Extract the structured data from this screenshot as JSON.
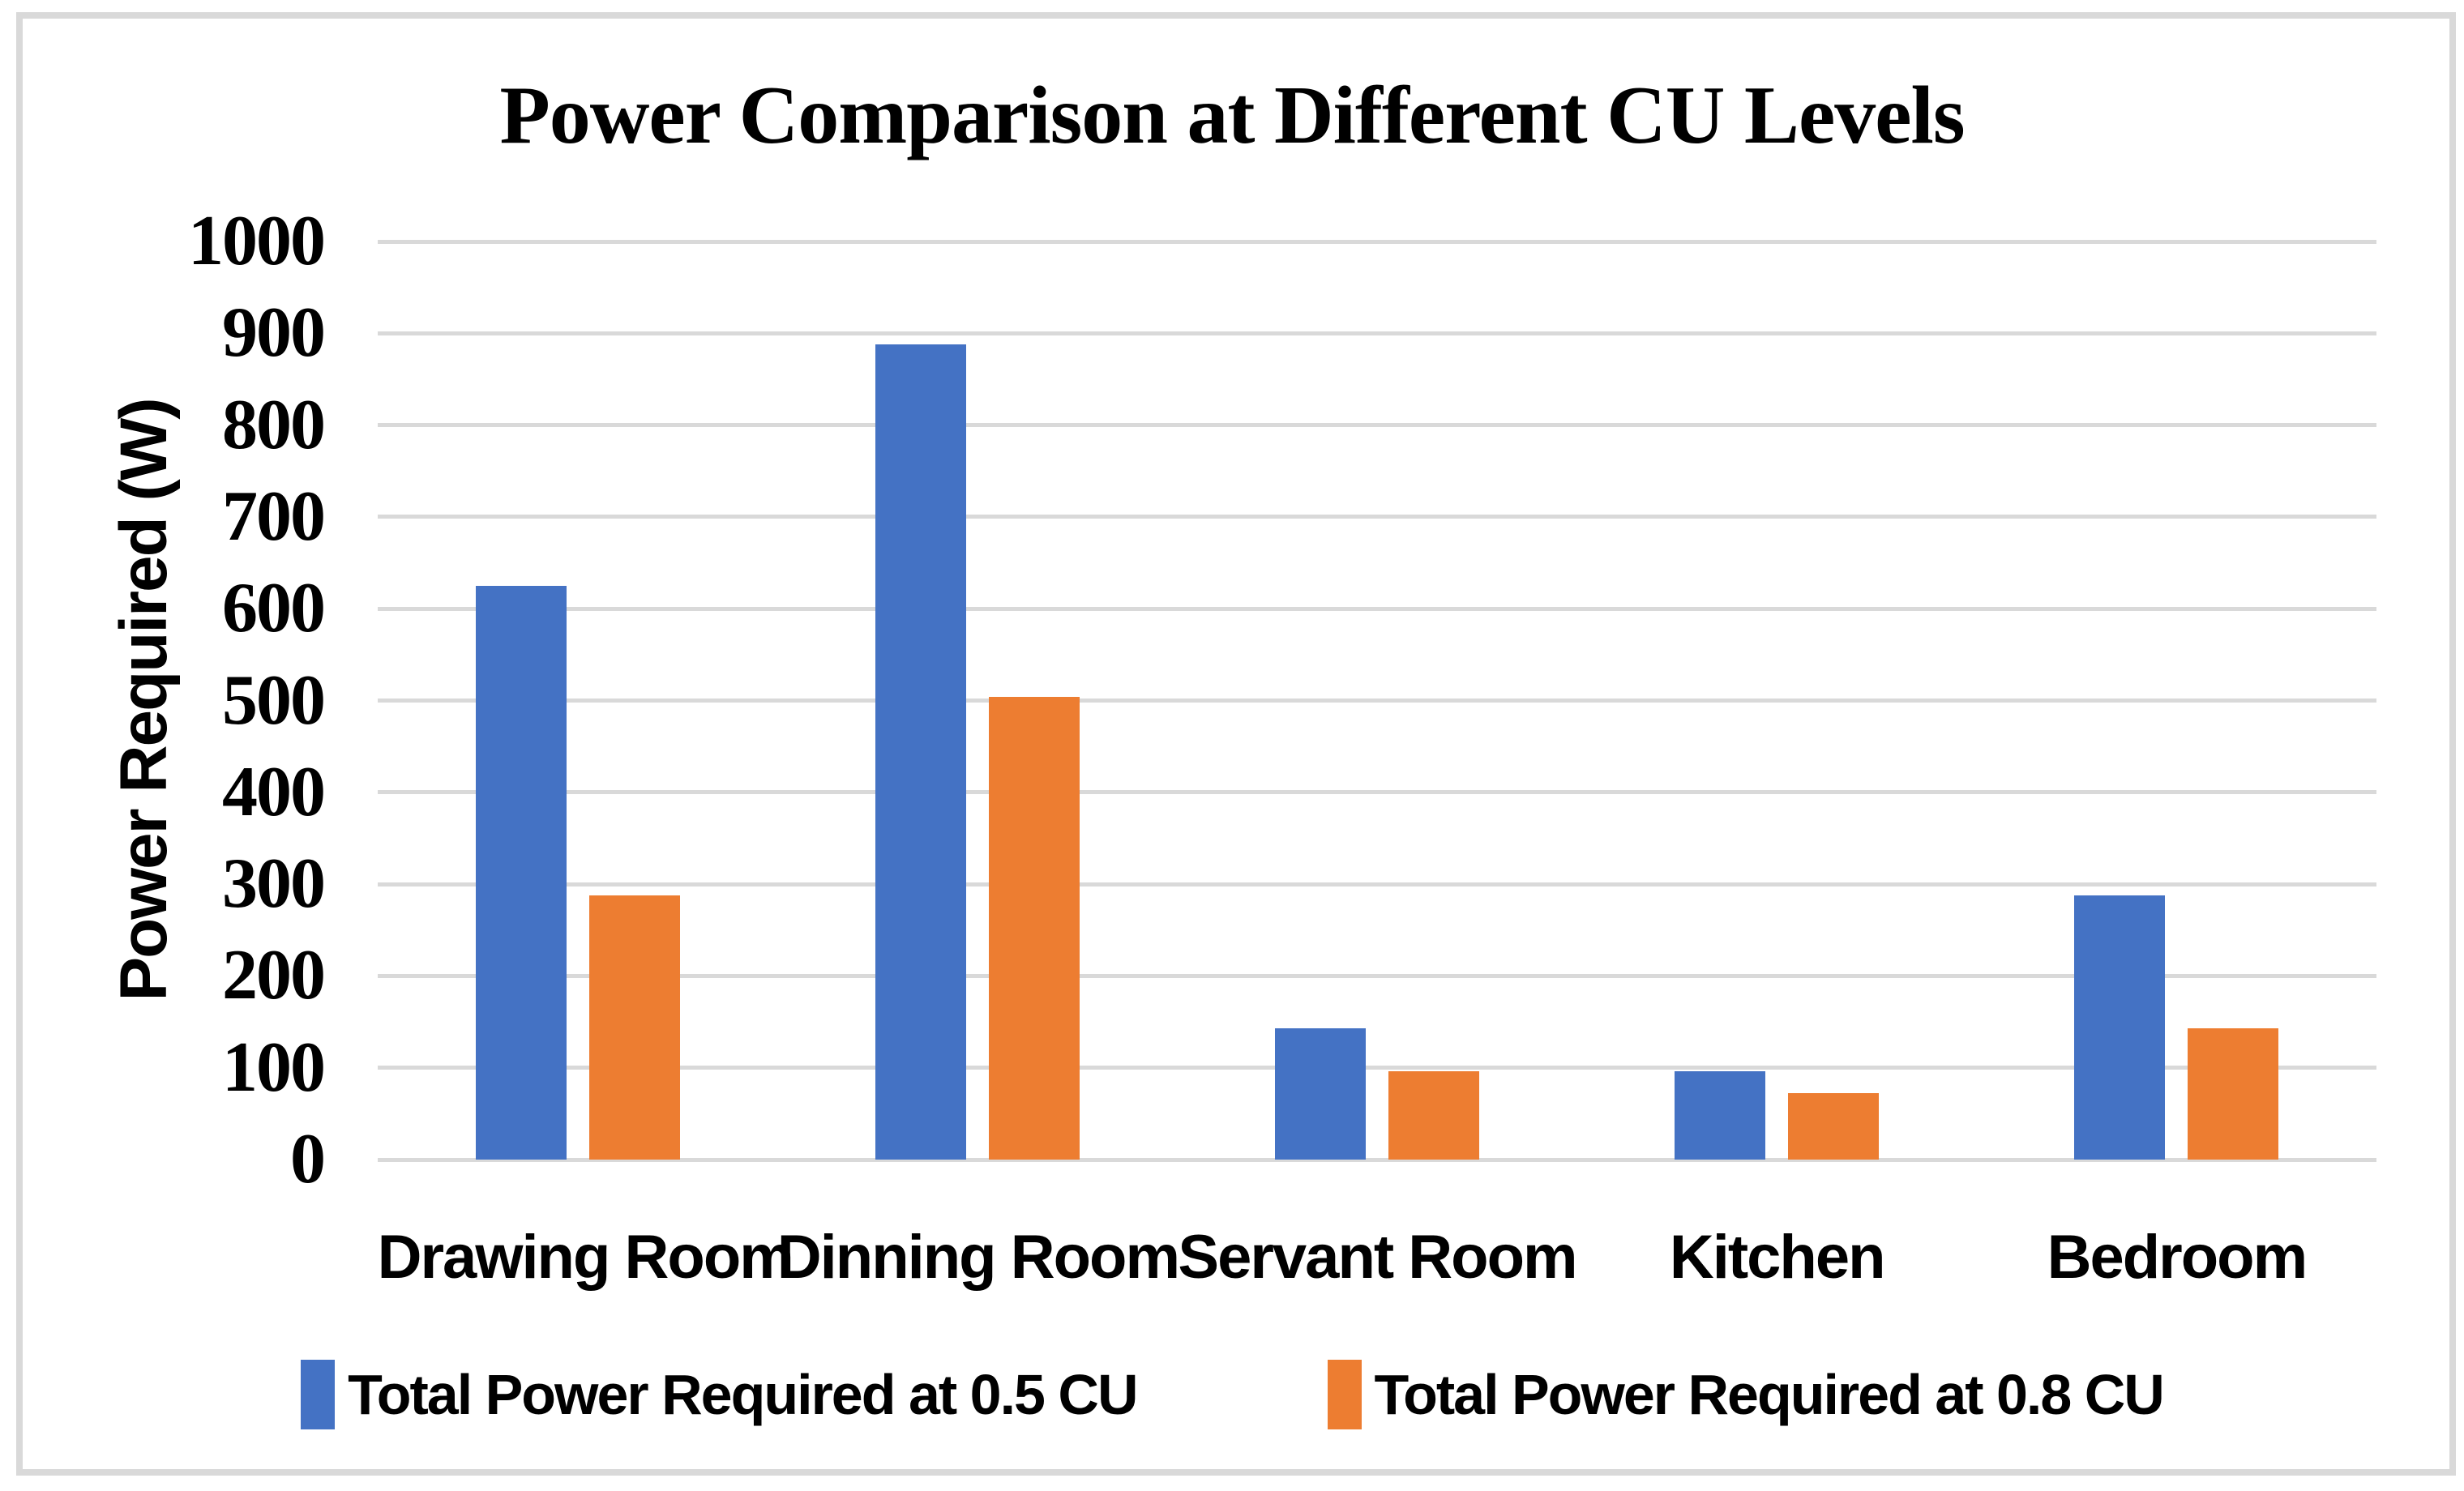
{
  "chart_data": {
    "type": "bar",
    "title": "Power Comparison at Different CU Levels",
    "xlabel": "",
    "ylabel": "Power Required (W)",
    "categories": [
      "Drawing Room",
      "Dinning Room",
      "Servant Room",
      "Kitchen",
      "Bedroom"
    ],
    "series": [
      {
        "name": "Total Power Required at 0.5 CU",
        "color": "#4472C4",
        "values": [
          625,
          888,
          143,
          96,
          288
        ]
      },
      {
        "name": "Total Power Required at 0.8 CU",
        "color": "#ED7D31",
        "values": [
          288,
          504,
          96,
          72,
          143
        ]
      }
    ],
    "ylim": [
      0,
      1000
    ],
    "ytick_step": 100,
    "grid": "horizontal",
    "gridline_color": "#D9D9D9",
    "background_color": "#FFFFFF",
    "border_color": "#D9D9D9",
    "legend_position": "bottom"
  }
}
